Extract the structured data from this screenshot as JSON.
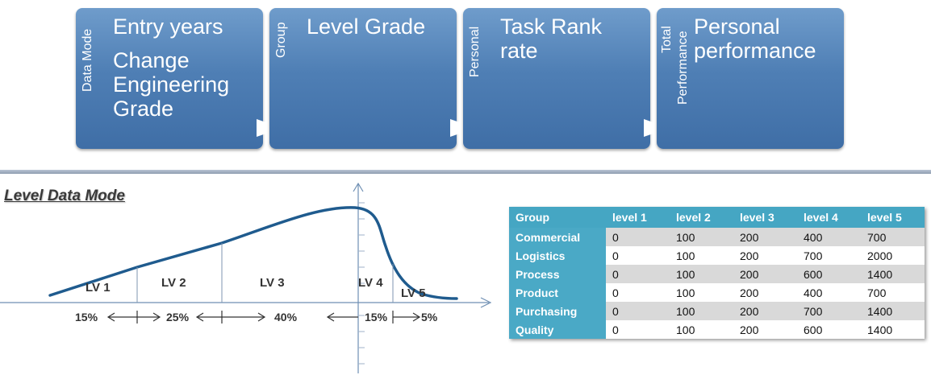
{
  "steps": [
    {
      "side": "Data Mode",
      "lines": [
        "Entry years",
        "Change",
        "Engineering",
        "Grade"
      ]
    },
    {
      "side": "Group",
      "lines": [
        "Level Grade"
      ]
    },
    {
      "side": "Personal",
      "lines": [
        "Task Rank",
        "rate"
      ]
    },
    {
      "side_lines": [
        "Total",
        "Performance"
      ],
      "lines": [
        "Personal",
        "performance"
      ]
    }
  ],
  "section_title": "Level Data Mode",
  "levels": [
    "LV 1",
    "LV 2",
    "LV 3",
    "LV 4",
    "LV 5"
  ],
  "percentages": [
    "15%",
    "25%",
    "40%",
    "15%",
    "5%"
  ],
  "table": {
    "headers": [
      "Group",
      "level 1",
      "level 2",
      "level 3",
      "level 4",
      "level 5"
    ],
    "rows": [
      {
        "group": "Commercial",
        "values": [
          "0",
          "100",
          "200",
          "400",
          "700"
        ]
      },
      {
        "group": "Logistics",
        "values": [
          "0",
          "100",
          "200",
          "700",
          "2000"
        ]
      },
      {
        "group": "Process",
        "values": [
          "0",
          "100",
          "200",
          "600",
          "1400"
        ]
      },
      {
        "group": "Product",
        "values": [
          "0",
          "100",
          "200",
          "400",
          "700"
        ]
      },
      {
        "group": "Purchasing",
        "values": [
          "0",
          "100",
          "200",
          "700",
          "1400"
        ]
      },
      {
        "group": "Quality",
        "values": [
          "0",
          "100",
          "200",
          "600",
          "1400"
        ]
      }
    ]
  },
  "colors": {
    "box": "#4f7fb5",
    "table_header": "#45a6c3",
    "curve": "#1f5b8e",
    "axis": "#6f8fb3"
  }
}
